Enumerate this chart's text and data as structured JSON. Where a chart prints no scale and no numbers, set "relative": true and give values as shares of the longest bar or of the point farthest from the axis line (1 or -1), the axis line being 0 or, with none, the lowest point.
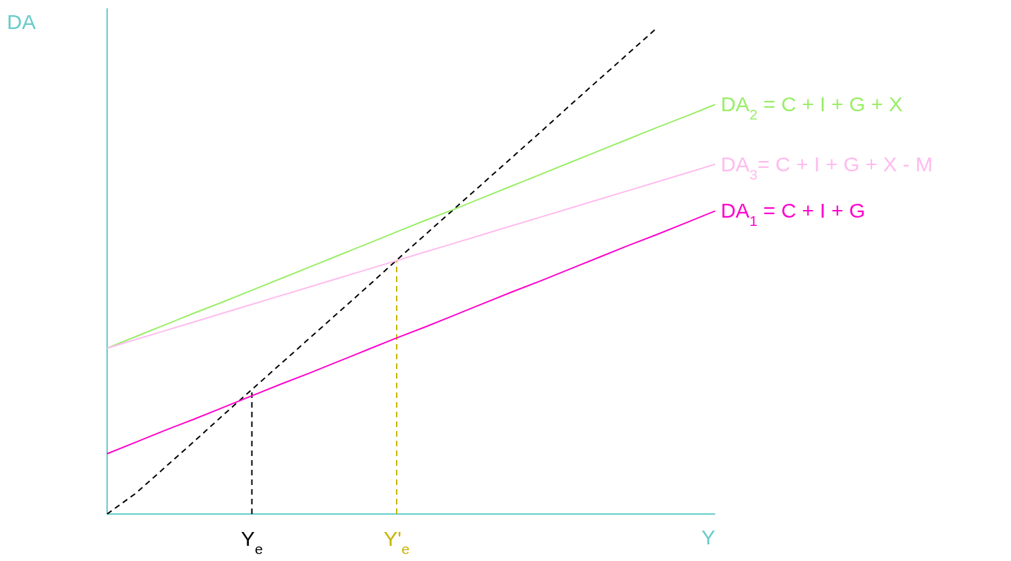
{
  "chart_data": {
    "type": "line",
    "relative": true,
    "xlabel": "Y",
    "ylabel": "DA",
    "categories": [
      null,
      null,
      null,
      null,
      null,
      "Y$_{e}$",
      null,
      null,
      null,
      null,
      "Y'$_{e}$",
      null,
      null,
      null,
      null,
      null,
      null,
      null,
      null,
      null,
      null,
      null
    ],
    "series": [
      {
        "color": "#000000",
        "line_style": "dashed",
        "values": [
          0,
          0.043,
          0.096,
          0.149,
          0.203,
          0.256,
          0.309,
          0.362,
          0.415,
          0.468,
          0.522,
          0.575,
          0.628,
          0.681,
          0.734,
          0.787,
          0.841,
          0.894,
          0.947,
          1.0,
          null,
          null
        ]
      },
      {
        "name": "DA$_{2}$ = C + I + G + X",
        "color": "#99ee66",
        "values": [
          0.341,
          0.365,
          0.389,
          0.413,
          0.436,
          0.46,
          0.484,
          0.508,
          0.532,
          0.556,
          0.58,
          0.604,
          0.627,
          0.651,
          0.675,
          0.699,
          0.723,
          0.747,
          0.771,
          0.795,
          0.818,
          0.842
        ]
      },
      {
        "name": "DA$_{3}$= C + I + G + X - M",
        "color": "#ffbbee",
        "values": [
          0.341,
          0.359,
          0.377,
          0.395,
          0.413,
          0.431,
          0.449,
          0.467,
          0.485,
          0.503,
          0.521,
          0.539,
          0.557,
          0.575,
          0.593,
          0.611,
          0.629,
          0.647,
          0.665,
          0.683,
          0.701,
          0.719
        ]
      },
      {
        "name": "DA$_{1}$ = C + I + G",
        "color": "#ff00cc",
        "values": [
          0.124,
          0.148,
          0.172,
          0.195,
          0.219,
          0.243,
          0.267,
          0.29,
          0.314,
          0.338,
          0.362,
          0.385,
          0.409,
          0.433,
          0.457,
          0.48,
          0.504,
          0.528,
          0.552,
          0.575,
          0.599,
          0.623
        ]
      }
    ],
    "ref_lines": [
      {
        "axis": "x",
        "value": "Y$_{e}$",
        "color": "#000000",
        "line_style": "dashed"
      },
      {
        "axis": "x",
        "value": "Y'$_{e}$",
        "color": "#c8b400",
        "line_style": "dashed"
      }
    ]
  }
}
